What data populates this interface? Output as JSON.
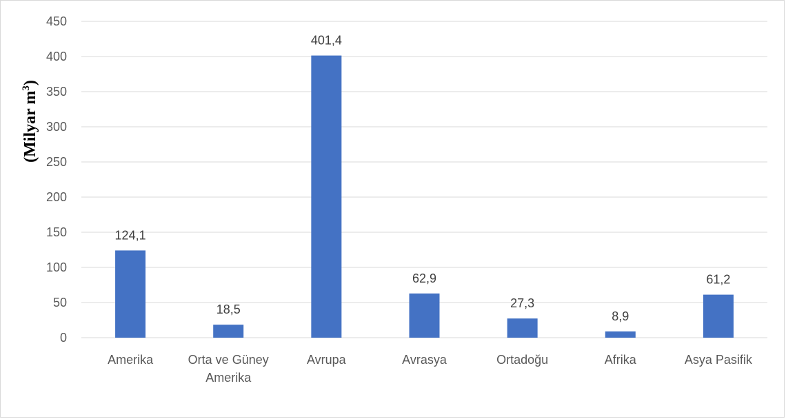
{
  "chart_data": {
    "type": "bar",
    "ylabel": "(Milyar m",
    "ylabel_superscript": "3",
    "ylabel_close": ")",
    "categories": [
      "Amerika",
      "Orta ve Güney Amerika",
      "Avrupa",
      "Avrasya",
      "Ortadoğu",
      "Afrika",
      "Asya Pasifik"
    ],
    "category_lines": [
      [
        "Amerika"
      ],
      [
        "Orta ve Güney",
        "Amerika"
      ],
      [
        "Avrupa"
      ],
      [
        "Avrasya"
      ],
      [
        "Ortadoğu"
      ],
      [
        "Afrika"
      ],
      [
        "Asya Pasifik"
      ]
    ],
    "values": [
      124.1,
      18.5,
      401.4,
      62.9,
      27.3,
      8.9,
      61.2
    ],
    "data_labels": [
      "124,1",
      "18,5",
      "401,4",
      "62,9",
      "27,3",
      "8,9",
      "61,2"
    ],
    "ylim": [
      0,
      450
    ],
    "yticks": [
      0,
      50,
      100,
      150,
      200,
      250,
      300,
      350,
      400,
      450
    ],
    "grid": true,
    "legend": false,
    "bar_color": "#4472c4",
    "grid_color": "#d9d9d9",
    "axis_color": "#d9d9d9"
  }
}
